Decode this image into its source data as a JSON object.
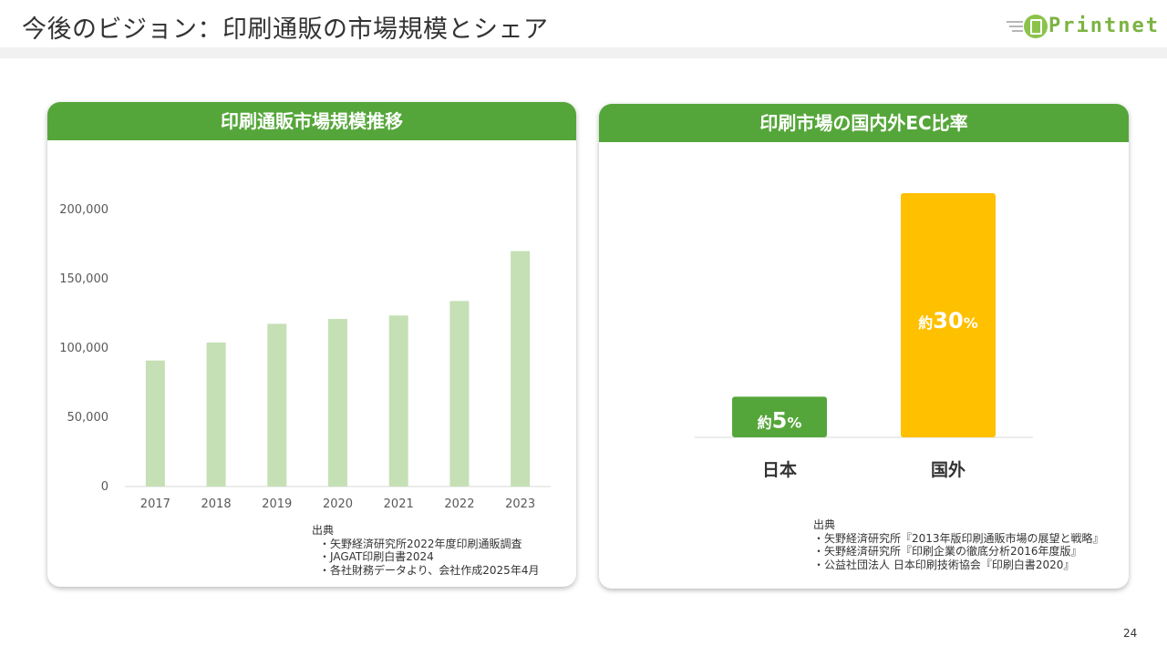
{
  "header": {
    "title": "今後のビジョン：印刷通販の市場規模とシェア",
    "logo_text": "Printnet"
  },
  "left_panel": {
    "title": "印刷通販市場規模推移",
    "source_label": "出典",
    "sources": [
      "・矢野経済研究所2022年度印刷通販調査",
      "・JAGAT印刷白書2024",
      "・各社財務データより、会社作成2025年4月"
    ]
  },
  "right_panel": {
    "title": "印刷市場の国内外EC比率",
    "source_label": "出典",
    "sources": [
      "・矢野経済研究所『2013年版印刷通販市場の展望と戦略』",
      "・矢野経済研究所『印刷企業の徹底分析2016年度版』",
      "・公益社団法人 日本印刷技術協会『印刷白書2020』"
    ]
  },
  "chart_data": [
    {
      "type": "bar",
      "title": "印刷通販市場規模推移",
      "categories": [
        "2017",
        "2018",
        "2019",
        "2020",
        "2021",
        "2022",
        "2023"
      ],
      "values": [
        91000,
        104000,
        117500,
        121000,
        123500,
        134000,
        170000
      ],
      "ylim": [
        0,
        200000
      ],
      "yticks": [
        "0",
        "50,000",
        "100,000",
        "150,000",
        "200,000"
      ],
      "grid": false,
      "colors": {
        "bar": "#c5e0b4",
        "axis": "#d9d9d9"
      }
    },
    {
      "type": "bar",
      "title": "印刷市場の国内外EC比率",
      "categories": [
        "日本",
        "国外"
      ],
      "values": [
        5,
        30
      ],
      "labels": [
        {
          "prefix": "約",
          "number": "5",
          "suffix": "%"
        },
        {
          "prefix": "約",
          "number": "30",
          "suffix": "%"
        }
      ],
      "unit": "%",
      "colors": {
        "bars": [
          "#55a63a",
          "#ffc000"
        ]
      }
    }
  ],
  "page_number": "24"
}
